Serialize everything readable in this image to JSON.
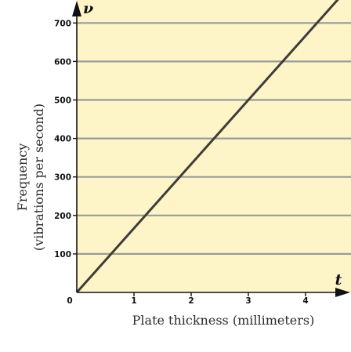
{
  "chart_data": {
    "type": "line",
    "title": "",
    "xlabel": "Plate thickness (millimeters)",
    "ylabel_line1": "Frequency",
    "ylabel_line2": "(vibrations per second)",
    "x_var": "t",
    "y_var": "ν",
    "origin_label": "0",
    "xlim": [
      0,
      4.6
    ],
    "ylim": [
      0,
      760
    ],
    "x_ticks": [
      1,
      2,
      3,
      4
    ],
    "x_tick_labels": [
      "1",
      "2",
      "3",
      "4"
    ],
    "y_ticks": [
      100,
      200,
      300,
      400,
      500,
      600,
      700
    ],
    "y_tick_labels": [
      "100",
      "200",
      "300",
      "400",
      "500",
      "600",
      "700"
    ],
    "grid": "horizontal",
    "series": [
      {
        "x": [
          0,
          4.6
        ],
        "y": [
          0,
          766.7
        ]
      }
    ],
    "colors": {
      "plot_background": "#fdf5c8",
      "grid": "#9a9a9a",
      "line": "#3f3d36",
      "axis": "#111111"
    }
  }
}
